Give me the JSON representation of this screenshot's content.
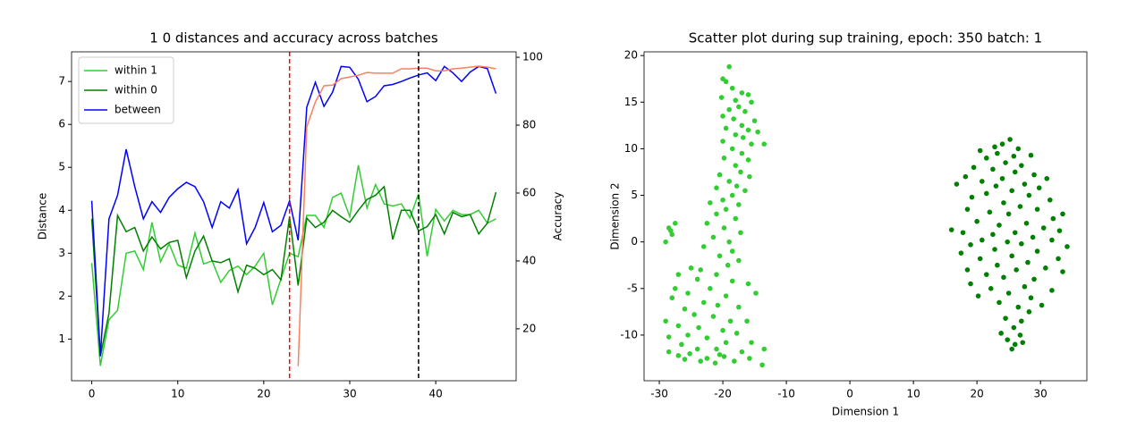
{
  "chart_data": [
    {
      "type": "line",
      "title": "1 0 distances and accuracy across batches",
      "ylabel": "Distance",
      "y2label": "Accuracy",
      "x": [
        0,
        1,
        2,
        3,
        4,
        5,
        6,
        7,
        8,
        9,
        10,
        11,
        12,
        13,
        14,
        15,
        16,
        17,
        18,
        19,
        20,
        21,
        22,
        23,
        24,
        25,
        26,
        27,
        28,
        29,
        30,
        31,
        32,
        33,
        34,
        35,
        36,
        37,
        38,
        39,
        40,
        41,
        42,
        43,
        44,
        45,
        46,
        47
      ],
      "series": [
        {
          "name": "within 1",
          "color": "#32cd32",
          "values": [
            2.77,
            0.38,
            1.45,
            1.67,
            3.0,
            3.05,
            2.62,
            3.72,
            2.8,
            3.22,
            2.72,
            2.65,
            3.47,
            2.75,
            2.82,
            2.32,
            2.6,
            2.7,
            2.5,
            2.7,
            3.0,
            1.8,
            2.4,
            3.0,
            2.92,
            3.88,
            3.88,
            3.6,
            4.3,
            4.4,
            3.85,
            5.05,
            4.05,
            4.6,
            4.15,
            4.1,
            4.15,
            3.82,
            4.38,
            2.93,
            4.02,
            3.75,
            4.0,
            3.9,
            3.9,
            4.0,
            3.7,
            3.8
          ]
        },
        {
          "name": "within 0",
          "color": "#008000",
          "values": [
            3.8,
            0.6,
            1.6,
            3.88,
            3.5,
            3.6,
            3.05,
            3.38,
            3.1,
            3.25,
            3.3,
            2.43,
            3.05,
            3.4,
            2.82,
            2.78,
            2.87,
            2.1,
            2.72,
            2.65,
            2.5,
            2.62,
            2.38,
            3.85,
            2.25,
            3.82,
            3.6,
            3.72,
            4.0,
            3.85,
            3.72,
            4.0,
            4.25,
            4.35,
            4.55,
            3.32,
            4.0,
            4.0,
            3.52,
            3.62,
            3.9,
            3.45,
            3.95,
            3.85,
            3.9,
            3.45,
            3.7,
            4.42
          ]
        },
        {
          "name": "between",
          "color": "#0000ff",
          "values": [
            4.22,
            0.6,
            3.8,
            4.35,
            5.42,
            4.55,
            3.8,
            4.2,
            3.95,
            4.3,
            4.5,
            4.65,
            4.55,
            4.2,
            3.6,
            4.2,
            4.05,
            4.48,
            3.22,
            3.6,
            4.18,
            3.5,
            3.65,
            4.22,
            3.3,
            6.4,
            6.98,
            6.42,
            6.75,
            7.35,
            7.33,
            7.05,
            6.53,
            6.65,
            6.9,
            6.93,
            7.0,
            7.08,
            7.15,
            7.2,
            7.02,
            7.35,
            7.2,
            7.0,
            7.22,
            7.35,
            7.3,
            6.72
          ]
        },
        {
          "color": "#fa8060",
          "axis": "y2",
          "values": [
            null,
            null,
            null,
            null,
            null,
            null,
            null,
            null,
            null,
            null,
            null,
            null,
            null,
            null,
            null,
            null,
            null,
            null,
            null,
            null,
            null,
            null,
            null,
            null,
            9,
            79.5,
            86.8,
            91.6,
            91.8,
            93.7,
            94.2,
            94.7,
            95.5,
            95.3,
            95.3,
            95.3,
            96.6,
            96.6,
            96.8,
            96.8,
            96,
            96,
            96.6,
            96.8,
            97.1,
            97.4,
            97.1,
            96.6
          ]
        }
      ],
      "vlines": [
        {
          "x": 23,
          "color": "#ff0000"
        },
        {
          "x": 38,
          "color": "#000000"
        }
      ],
      "xlim": [
        -2.35,
        49.35
      ],
      "xticks": [
        0,
        10,
        20,
        30,
        40
      ],
      "ylim": [
        0.03,
        7.69
      ],
      "yticks": [
        1,
        2,
        3,
        4,
        5,
        6,
        7
      ],
      "y2lim": [
        4.7,
        101.6
      ],
      "y2ticks": [
        20,
        40,
        60,
        80,
        100
      ],
      "legend": "upper left"
    },
    {
      "type": "scatter",
      "title": "Scatter plot during sup training, epoch: 350 batch: 1",
      "xlabel": "Dimension 1",
      "ylabel": "Dimension 2",
      "series": [
        {
          "color": "#32cd32",
          "x": [
            -19,
            -20,
            -19.5,
            -18.5,
            -17,
            -16,
            -20.2,
            -18,
            -15.5,
            -17.5,
            -19,
            -16.5,
            -20,
            -18.3,
            -15,
            -17,
            -19.5,
            -16,
            -14.5,
            -18,
            -16.8,
            -20,
            -15.5,
            -13.5,
            -18.5,
            -17,
            -19.8,
            -16,
            -18,
            -17.2,
            -20.5,
            -15.8,
            -19,
            -17.8,
            -21,
            -16.5,
            -18.5,
            -20,
            -22,
            -17.5,
            -19.5,
            -21,
            -18,
            -22.5,
            -19.8,
            -17.2,
            -21.5,
            -19,
            -23,
            -18.5,
            -20.5,
            -17.5,
            -19.2,
            -28.5,
            -28,
            -29,
            -28.2,
            -27.5,
            -25,
            -23.5,
            -27,
            -21,
            -24,
            -18.5,
            -16,
            -27.5,
            -22,
            -25.5,
            -19.5,
            -14.8,
            -28,
            -23,
            -20.8,
            -17.5,
            -26,
            -24.5,
            -21.5,
            -18.8,
            -16.2,
            -29,
            -27,
            -23.8,
            -20,
            -17.8,
            -25.5,
            -22.5,
            -28.5,
            -19.5,
            -15.5,
            -26.5,
            -24,
            -21,
            -17,
            -13.5,
            -28.5,
            -25.2,
            -22.5,
            -19.8,
            -15.8,
            -27,
            -23.5,
            -21.2,
            -18.2,
            -13.8,
            -26,
            -20.5
          ],
          "values": [
            18.8,
            17.5,
            17.2,
            16.5,
            16,
            15.8,
            15.5,
            15.2,
            15,
            14.5,
            14.2,
            14,
            13.5,
            13.2,
            13,
            12.5,
            12.2,
            12,
            11.8,
            11.5,
            11.2,
            10.8,
            10.5,
            10.5,
            10,
            9.5,
            9,
            8.8,
            8.2,
            7.5,
            7.2,
            7,
            6.5,
            6,
            5.8,
            5.5,
            5,
            4.5,
            4.2,
            4,
            3.5,
            3,
            2.5,
            2,
            1.5,
            1,
            0.5,
            0,
            -0.5,
            -1,
            -1.5,
            -2,
            -2.5,
            1.5,
            0.8,
            0,
            1.2,
            2,
            -2.8,
            -3,
            -3.5,
            -3.5,
            -4,
            -4.2,
            -4.5,
            -5,
            -5,
            -5.5,
            -5.8,
            -5.5,
            -6,
            -6.5,
            -6.8,
            -7,
            -7.2,
            -7.8,
            -8,
            -8.5,
            -8.5,
            -8.5,
            -9,
            -9.2,
            -9.5,
            -9.8,
            -10,
            -10.3,
            -10.2,
            -10.8,
            -10.8,
            -11,
            -11.5,
            -11.5,
            -11.8,
            -11.5,
            -11.8,
            -12,
            -12.5,
            -12.3,
            -12.5,
            -12.2,
            -12.8,
            -13,
            -12.8,
            -13.2,
            -12.6,
            -12.1
          ]
        },
        {
          "color": "#008000",
          "x": [
            25.2,
            24,
            22.8,
            26.5,
            20.5,
            23.2,
            25.8,
            28.5,
            21.5,
            24.5,
            27,
            19.5,
            22.5,
            26,
            29,
            18.2,
            24,
            31,
            20.8,
            27.5,
            23,
            29.8,
            16.8,
            25.5,
            21.5,
            28.2,
            19.2,
            31.5,
            24.2,
            26.8,
            18.5,
            22,
            29.5,
            33.5,
            25,
            32,
            20,
            27.8,
            23.5,
            30.5,
            17.8,
            22.5,
            26,
            33,
            16,
            28.8,
            20.8,
            24.8,
            31.8,
            19,
            27,
            34.2,
            22.8,
            29.5,
            17.5,
            25.5,
            32.8,
            20.5,
            28,
            23.2,
            30.8,
            18.5,
            26.2,
            21.5,
            33.5,
            24.2,
            29,
            19,
            27.5,
            22.2,
            31.8,
            25,
            20.2,
            28.5,
            23.5,
            30.2,
            26.5,
            28.2,
            24.5,
            27,
            25.8,
            23.8,
            26.8,
            24.8,
            26,
            25.5,
            27.2
          ],
          "values": [
            11,
            10.5,
            10.2,
            10,
            9.8,
            9.5,
            9.2,
            9.3,
            9,
            8.5,
            8.2,
            8,
            7.8,
            7.5,
            7.2,
            7,
            6.8,
            6.8,
            6.5,
            6.2,
            6,
            5.8,
            6.2,
            5.5,
            5.2,
            5,
            4.8,
            4.5,
            4.2,
            3.8,
            3.5,
            3.2,
            3.5,
            3,
            3,
            2.5,
            2.2,
            2,
            1.8,
            1.5,
            1,
            0.8,
            1,
            1.2,
            1.3,
            0.5,
            0.2,
            0,
            0.2,
            -0.3,
            -0.2,
            -0.5,
            -0.8,
            -1,
            -1.2,
            -1.5,
            -1.8,
            -1.8,
            -2.2,
            -2.5,
            -2.8,
            -3,
            -3,
            -3.5,
            -3.2,
            -3.8,
            -4,
            -4.5,
            -4.8,
            -5,
            -5.2,
            -5.5,
            -5.8,
            -6,
            -6.5,
            -6.8,
            -7,
            -7.5,
            -8.2,
            -8.5,
            -9.2,
            -9.8,
            -10,
            -10.5,
            -11,
            -11.5,
            -10.8
          ]
        }
      ],
      "xlim": [
        -32.4,
        37.3
      ],
      "xticks": [
        -30,
        -20,
        -10,
        0,
        10,
        20,
        30
      ],
      "ylim": [
        -14.9,
        20.4
      ],
      "yticks": [
        -10,
        -5,
        0,
        5,
        10,
        15,
        20
      ]
    }
  ]
}
